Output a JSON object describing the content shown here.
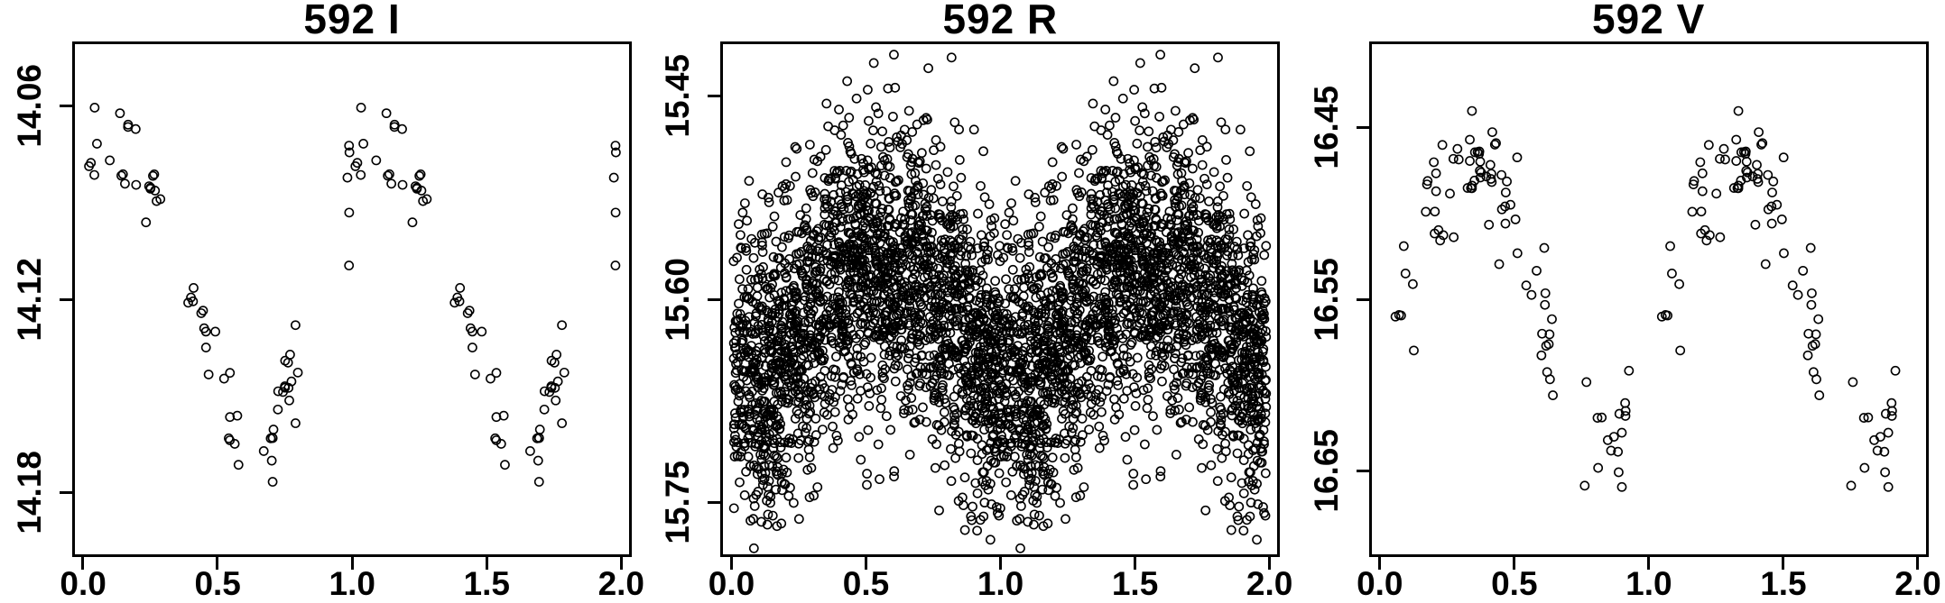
{
  "figure": {
    "background": "#ffffff",
    "n_panels": 3,
    "description": "Three phase-folded light curves (phase 0-2, double plotted) of star 592 in I, R and V bands; magnitude axes inverted (bright up)."
  },
  "chart_data": [
    {
      "type": "scatter",
      "title": "592 I",
      "xlabel": "",
      "ylabel": "",
      "x_ticks": [
        "0.0",
        "0.5",
        "1.0",
        "1.5",
        "2.0"
      ],
      "x_tick_values": [
        0.0,
        0.5,
        1.0,
        1.5,
        2.0
      ],
      "xlim": [
        -0.04,
        2.04
      ],
      "y_ticks": [
        "14.06",
        "14.12",
        "14.18"
      ],
      "y_tick_values": [
        14.06,
        14.12,
        14.18
      ],
      "ylim_top": 14.04,
      "ylim_bottom": 14.2,
      "marker": "open-circle",
      "marker_color": "#000000",
      "grid": false,
      "legend": null,
      "light_curve": {
        "mean_mag": 14.115,
        "amplitude": 0.046,
        "phase_of_maximum_brightness": 0.13,
        "scatter_sigma": 0.011,
        "n_obs": 68,
        "n_points_plotted": 136,
        "double_plotted": true,
        "phase_clusters": 13,
        "cluster_width": 0.07,
        "seed": 7
      }
    },
    {
      "type": "scatter",
      "title": "592 R",
      "xlabel": "",
      "ylabel": "",
      "x_ticks": [
        "0.0",
        "0.5",
        "1.0",
        "1.5",
        "2.0"
      ],
      "x_tick_values": [
        0.0,
        0.5,
        1.0,
        1.5,
        2.0
      ],
      "xlim": [
        -0.04,
        2.04
      ],
      "y_ticks": [
        "15.45",
        "15.60",
        "15.75"
      ],
      "y_tick_values": [
        15.45,
        15.6,
        15.75
      ],
      "ylim_top": 15.41,
      "ylim_bottom": 15.79,
      "marker": "open-circle",
      "marker_color": "#000000",
      "grid": false,
      "legend": null,
      "light_curve": {
        "mean_mag": 15.615,
        "amplitude": 0.045,
        "phase_of_maximum_brightness": 0.55,
        "scatter_sigma": 0.055,
        "n_obs": 2200,
        "n_points_plotted": 4400,
        "double_plotted": true,
        "phase_clusters": 0,
        "cluster_width": 0,
        "seed": 13
      }
    },
    {
      "type": "scatter",
      "title": "592 V",
      "xlabel": "",
      "ylabel": "",
      "x_ticks": [
        "0.0",
        "0.5",
        "1.0",
        "1.5",
        "2.0"
      ],
      "x_tick_values": [
        0.0,
        0.5,
        1.0,
        1.5,
        2.0
      ],
      "xlim": [
        -0.04,
        2.04
      ],
      "y_ticks": [
        "16.45",
        "16.55",
        "16.65"
      ],
      "y_tick_values": [
        16.45,
        16.55,
        16.65
      ],
      "ylim_top": 16.4,
      "ylim_bottom": 16.7,
      "marker": "open-circle",
      "marker_color": "#000000",
      "grid": false,
      "legend": null,
      "light_curve": {
        "mean_mag": 16.55,
        "amplitude": 0.09,
        "phase_of_maximum_brightness": 0.33,
        "scatter_sigma": 0.02,
        "n_obs": 92,
        "n_points_plotted": 184,
        "double_plotted": true,
        "phase_clusters": 22,
        "cluster_width": 0.06,
        "seed": 21
      }
    }
  ]
}
